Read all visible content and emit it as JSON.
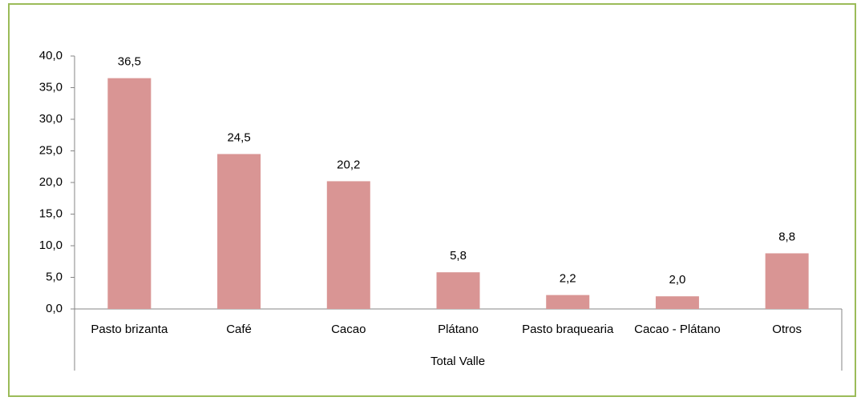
{
  "chart_data": {
    "type": "bar",
    "xlabel": "Total Valle",
    "categories": [
      "Pasto brizanta",
      "Café",
      "Cacao",
      "Plátano",
      "Pasto braquearia",
      "Cacao - Plátano",
      "Otros"
    ],
    "values": [
      36.5,
      24.5,
      20.2,
      5.8,
      2.2,
      2.0,
      8.8
    ],
    "value_labels": [
      "36,5",
      "24,5",
      "20,2",
      "5,8",
      "2,2",
      "2,0",
      "8,8"
    ],
    "color": "#d99594",
    "ylim": [
      0,
      40
    ],
    "yticks": [
      {
        "value": 0,
        "label": "0,0"
      },
      {
        "value": 5,
        "label": "5,0"
      },
      {
        "value": 10,
        "label": "10,0"
      },
      {
        "value": 15,
        "label": "15,0"
      },
      {
        "value": 20,
        "label": "20,0"
      },
      {
        "value": 25,
        "label": "25,0"
      },
      {
        "value": 30,
        "label": "30,0"
      },
      {
        "value": 35,
        "label": "35,0"
      },
      {
        "value": 40,
        "label": "40,0"
      }
    ],
    "grid": false
  }
}
